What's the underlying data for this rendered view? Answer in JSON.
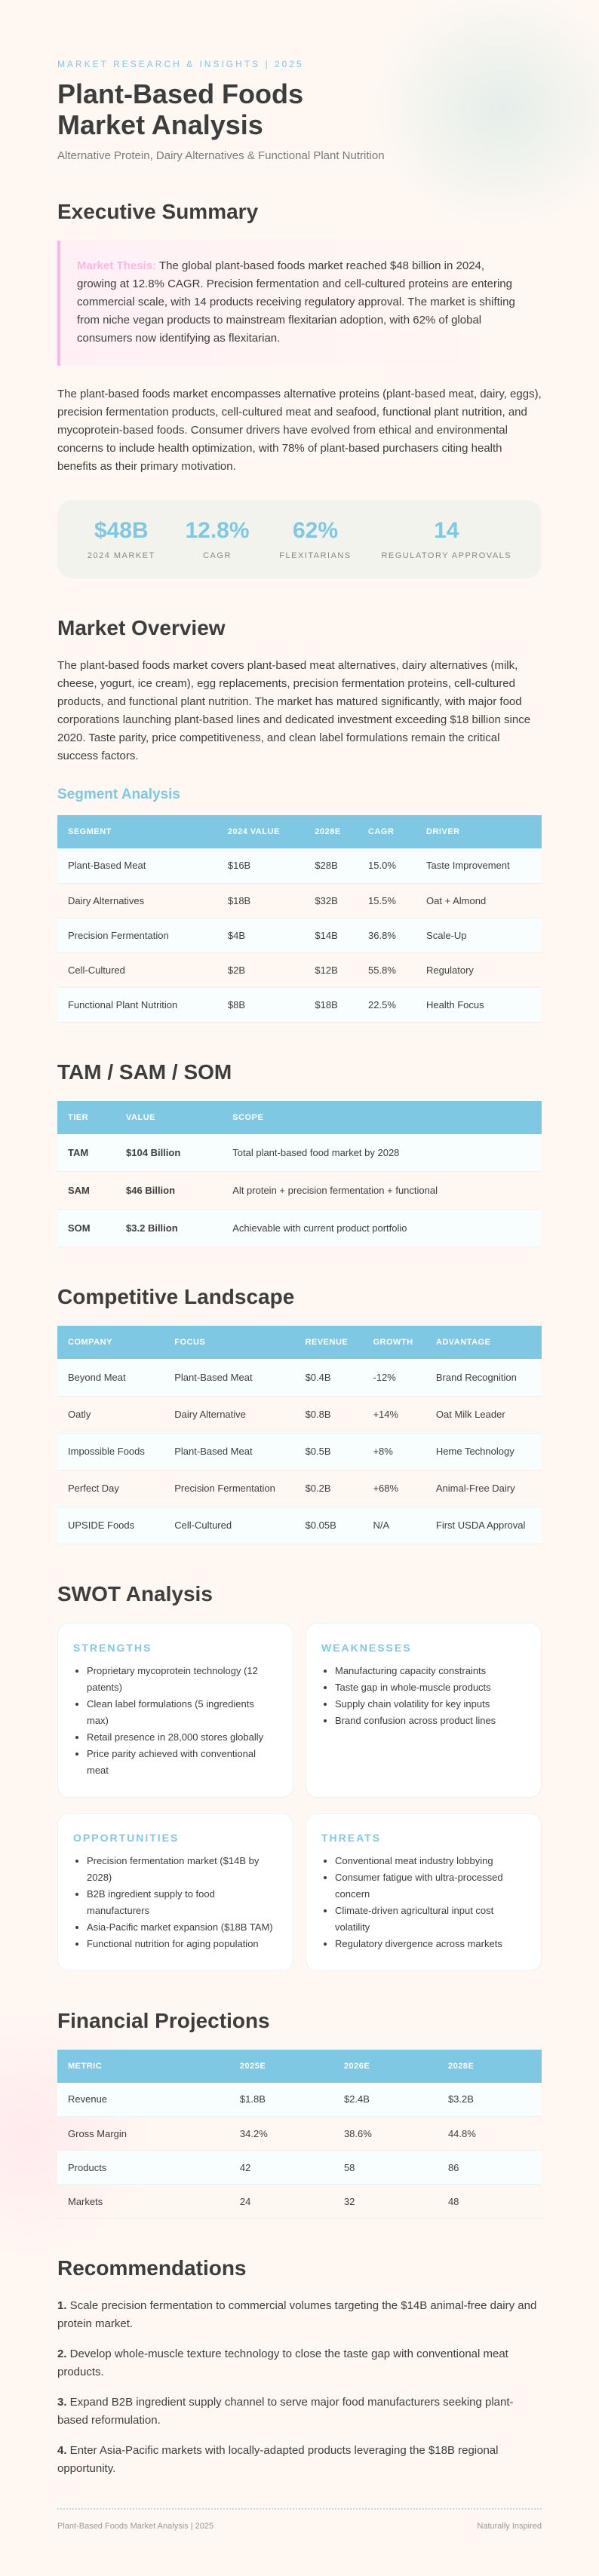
{
  "header": {
    "eyebrow": "MARKET RESEARCH & INSIGHTS | 2025",
    "title_line1": "Plant-Based Foods",
    "title_line2": "Market Analysis",
    "subtitle": "Alternative Protein, Dairy Alternatives & Functional Plant Nutrition"
  },
  "executive": {
    "heading": "Executive Summary",
    "thesis_label": "Market Thesis:",
    "thesis_text": " The global plant-based foods market reached $48 billion in 2024, growing at 12.8% CAGR. Precision fermentation and cell-cultured proteins are entering commercial scale, with 14 products receiving regulatory approval. The market is shifting from niche vegan products to mainstream flexitarian adoption, with 62% of global consumers now identifying as flexitarian.",
    "paragraph": "The plant-based foods market encompasses alternative proteins (plant-based meat, dairy, eggs), precision fermentation products, cell-cultured meat and seafood, functional plant nutrition, and mycoprotein-based foods. Consumer drivers have evolved from ethical and environmental concerns to include health optimization, with 78% of plant-based purchasers citing health benefits as their primary motivation.",
    "stats": [
      {
        "value": "$48B",
        "label": "2024 MARKET"
      },
      {
        "value": "12.8%",
        "label": "CAGR"
      },
      {
        "value": "62%",
        "label": "FLEXITARIANS"
      },
      {
        "value": "14",
        "label": "REGULATORY APPROVALS"
      }
    ]
  },
  "overview": {
    "heading": "Market Overview",
    "paragraph": "The plant-based foods market covers plant-based meat alternatives, dairy alternatives (milk, cheese, yogurt, ice cream), egg replacements, precision fermentation proteins, cell-cultured products, and functional plant nutrition. The market has matured significantly, with major food corporations launching plant-based lines and dedicated investment exceeding $18 billion since 2020. Taste parity, price competitiveness, and clean label formulations remain the critical success factors.",
    "segment_heading": "Segment Analysis",
    "segment_columns": [
      "SEGMENT",
      "2024 VALUE",
      "2028E",
      "CAGR",
      "DRIVER"
    ],
    "segment_rows": [
      [
        "Plant-Based Meat",
        "$16B",
        "$28B",
        "15.0%",
        "Taste Improvement"
      ],
      [
        "Dairy Alternatives",
        "$18B",
        "$32B",
        "15.5%",
        "Oat + Almond"
      ],
      [
        "Precision Fermentation",
        "$4B",
        "$14B",
        "36.8%",
        "Scale-Up"
      ],
      [
        "Cell-Cultured",
        "$2B",
        "$12B",
        "55.8%",
        "Regulatory"
      ],
      [
        "Functional Plant Nutrition",
        "$8B",
        "$18B",
        "22.5%",
        "Health Focus"
      ]
    ]
  },
  "tam": {
    "heading": "TAM / SAM / SOM",
    "columns": [
      "TIER",
      "VALUE",
      "SCOPE"
    ],
    "rows": [
      [
        "TAM",
        "$104 Billion",
        "Total plant-based food market by 2028"
      ],
      [
        "SAM",
        "$46 Billion",
        "Alt protein + precision fermentation + functional"
      ],
      [
        "SOM",
        "$3.2 Billion",
        "Achievable with current product portfolio"
      ]
    ]
  },
  "competitive": {
    "heading": "Competitive Landscape",
    "columns": [
      "COMPANY",
      "FOCUS",
      "REVENUE",
      "GROWTH",
      "ADVANTAGE"
    ],
    "rows": [
      [
        "Beyond Meat",
        "Plant-Based Meat",
        "$0.4B",
        "-12%",
        "Brand Recognition"
      ],
      [
        "Oatly",
        "Dairy Alternative",
        "$0.8B",
        "+14%",
        "Oat Milk Leader"
      ],
      [
        "Impossible Foods",
        "Plant-Based Meat",
        "$0.5B",
        "+8%",
        "Heme Technology"
      ],
      [
        "Perfect Day",
        "Precision Fermentation",
        "$0.2B",
        "+68%",
        "Animal-Free Dairy"
      ],
      [
        "UPSIDE Foods",
        "Cell-Cultured",
        "$0.05B",
        "N/A",
        "First USDA Approval"
      ]
    ]
  },
  "swot": {
    "heading": "SWOT Analysis",
    "cards": [
      {
        "title": "STRENGTHS",
        "items": [
          "Proprietary mycoprotein technology (12 patents)",
          "Clean label formulations (5 ingredients max)",
          "Retail presence in 28,000 stores globally",
          "Price parity achieved with conventional meat"
        ]
      },
      {
        "title": "WEAKNESSES",
        "items": [
          "Manufacturing capacity constraints",
          "Taste gap in whole-muscle products",
          "Supply chain volatility for key inputs",
          "Brand confusion across product lines"
        ]
      },
      {
        "title": "OPPORTUNITIES",
        "items": [
          "Precision fermentation market ($14B by 2028)",
          "B2B ingredient supply to food manufacturers",
          "Asia-Pacific market expansion ($18B TAM)",
          "Functional nutrition for aging population"
        ]
      },
      {
        "title": "THREATS",
        "items": [
          "Conventional meat industry lobbying",
          "Consumer fatigue with ultra-processed concern",
          "Climate-driven agricultural input cost volatility",
          "Regulatory divergence across markets"
        ]
      }
    ]
  },
  "financial": {
    "heading": "Financial Projections",
    "columns": [
      "METRIC",
      "2025E",
      "2026E",
      "2028E"
    ],
    "rows": [
      [
        "Revenue",
        "$1.8B",
        "$2.4B",
        "$3.2B"
      ],
      [
        "Gross Margin",
        "34.2%",
        "38.6%",
        "44.8%"
      ],
      [
        "Products",
        "42",
        "58",
        "86"
      ],
      [
        "Markets",
        "24",
        "32",
        "48"
      ]
    ]
  },
  "recommendations": {
    "heading": "Recommendations",
    "items": [
      {
        "num": "1.",
        "text": " Scale precision fermentation to commercial volumes targeting the $14B animal-free dairy and protein market."
      },
      {
        "num": "2.",
        "text": " Develop whole-muscle texture technology to close the taste gap with conventional meat products."
      },
      {
        "num": "3.",
        "text": " Expand B2B ingredient supply channel to serve major food manufacturers seeking plant-based reformulation."
      },
      {
        "num": "4.",
        "text": " Enter Asia-Pacific markets with locally-adapted products leveraging the $18B regional opportunity."
      }
    ]
  },
  "footer": {
    "left": "Plant-Based Foods Market Analysis | 2025",
    "right": "Naturally Inspired"
  },
  "colors": {
    "accent": "#7ec8e3",
    "thesis": "#f9b8e0",
    "text": "#3d3d3d",
    "background": "#fff8f2"
  }
}
